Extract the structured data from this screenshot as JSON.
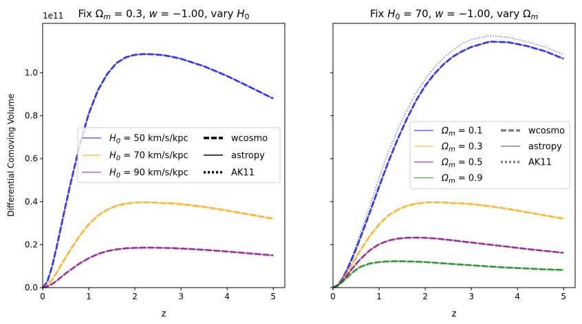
{
  "chart_data": [
    {
      "type": "line",
      "title": "Fix Ωm = 0.3, w = −1.00, vary H0",
      "title_parts": {
        "a": "Fix Ω",
        "sub1": "m",
        "b": " = 0.3, ",
        "w": "w",
        "c": " = −1.00, vary ",
        "h": "H",
        "sub2": "0"
      },
      "xlabel": "z",
      "ylabel": "Differential Comoving Volume",
      "offset_text": "1e11",
      "xlim": [
        0,
        5.25
      ],
      "ylim": [
        0,
        1.23
      ],
      "xticks": [
        0,
        1,
        2,
        3,
        4,
        5
      ],
      "yticks": [
        0.0,
        0.2,
        0.4,
        0.6,
        0.8,
        1.0
      ],
      "ytick_labels": [
        "0.0",
        "0.2",
        "0.4",
        "0.6",
        "0.8",
        "1.0"
      ],
      "x": [
        0,
        0.1,
        0.2,
        0.3,
        0.4,
        0.5,
        0.6,
        0.8,
        1.0,
        1.2,
        1.4,
        1.6,
        1.8,
        2.0,
        2.2,
        2.4,
        2.6,
        2.8,
        3.0,
        3.5,
        4.0,
        4.5,
        5.0
      ],
      "series": [
        {
          "name": "H0 = 50 km/s/kpc",
          "color": "#0000ff",
          "values": [
            0,
            0.027,
            0.095,
            0.185,
            0.285,
            0.385,
            0.48,
            0.66,
            0.81,
            0.92,
            0.995,
            1.045,
            1.072,
            1.084,
            1.087,
            1.086,
            1.082,
            1.075,
            1.065,
            1.03,
            0.985,
            0.933,
            0.88
          ]
        },
        {
          "name": "H0 = 70 km/s/kpc",
          "color": "#ffa500",
          "values": [
            0,
            0.01,
            0.035,
            0.068,
            0.105,
            0.141,
            0.176,
            0.241,
            0.295,
            0.336,
            0.363,
            0.381,
            0.391,
            0.396,
            0.397,
            0.396,
            0.394,
            0.392,
            0.389,
            0.376,
            0.359,
            0.34,
            0.321
          ]
        },
        {
          "name": "H0 = 90 km/s/kpc",
          "color": "#800080",
          "values": [
            0,
            0.005,
            0.016,
            0.031,
            0.049,
            0.066,
            0.082,
            0.112,
            0.137,
            0.157,
            0.17,
            0.178,
            0.183,
            0.185,
            0.186,
            0.186,
            0.185,
            0.184,
            0.182,
            0.176,
            0.168,
            0.159,
            0.15
          ]
        }
      ],
      "legend": {
        "placement": "center-right",
        "entries": [
          {
            "pre": "H",
            "sub": "0",
            "post": " = 50 km/s/kpc",
            "color": "#0000ff"
          },
          {
            "pre": "H",
            "sub": "0",
            "post": " = 70 km/s/kpc",
            "color": "#ffa500"
          },
          {
            "pre": "H",
            "sub": "0",
            "post": " = 90 km/s/kpc",
            "color": "#800080"
          }
        ],
        "styles": [
          "wcosmo",
          "astropy",
          "AK11"
        ],
        "style_color": "#000000"
      }
    },
    {
      "type": "line",
      "title": "Fix H0 = 70, w = −1.00, vary Ωm",
      "title_parts": {
        "a": "Fix ",
        "h": "H",
        "sub1": "0",
        "b": " = 70, ",
        "w": "w",
        "c": " = −1.00, vary Ω",
        "sub2": "m"
      },
      "xlabel": "z",
      "xlim": [
        0,
        5.25
      ],
      "ylim": [
        0,
        1.23
      ],
      "xticks": [
        0,
        1,
        2,
        3,
        4,
        5
      ],
      "x": [
        0,
        0.1,
        0.2,
        0.3,
        0.4,
        0.5,
        0.6,
        0.8,
        1.0,
        1.2,
        1.4,
        1.6,
        1.8,
        2.0,
        2.2,
        2.4,
        2.6,
        2.8,
        3.0,
        3.4,
        3.8,
        4.2,
        4.6,
        5.0
      ],
      "series": [
        {
          "name": "Ωm = 0.1",
          "color": "#0000ff",
          "values": [
            0,
            0.011,
            0.04,
            0.08,
            0.128,
            0.18,
            0.235,
            0.35,
            0.47,
            0.585,
            0.69,
            0.785,
            0.87,
            0.94,
            0.995,
            1.04,
            1.075,
            1.1,
            1.12,
            1.145,
            1.142,
            1.125,
            1.1,
            1.065
          ]
        },
        {
          "name": "Ωm = 0.3",
          "color": "#ffa500",
          "values": [
            0,
            0.01,
            0.035,
            0.068,
            0.105,
            0.141,
            0.176,
            0.241,
            0.295,
            0.336,
            0.363,
            0.381,
            0.391,
            0.396,
            0.397,
            0.396,
            0.394,
            0.392,
            0.389,
            0.379,
            0.366,
            0.351,
            0.336,
            0.321
          ]
        },
        {
          "name": "Ωm = 0.5",
          "color": "#800080",
          "values": [
            0,
            0.009,
            0.03,
            0.056,
            0.084,
            0.11,
            0.134,
            0.174,
            0.202,
            0.219,
            0.228,
            0.232,
            0.233,
            0.232,
            0.229,
            0.225,
            0.22,
            0.215,
            0.21,
            0.2,
            0.19,
            0.18,
            0.171,
            0.162
          ]
        },
        {
          "name": "Ωm = 0.9",
          "color": "#008000",
          "values": [
            0,
            0.008,
            0.026,
            0.046,
            0.066,
            0.083,
            0.097,
            0.112,
            0.119,
            0.122,
            0.123,
            0.122,
            0.121,
            0.119,
            0.116,
            0.113,
            0.11,
            0.107,
            0.104,
            0.098,
            0.093,
            0.089,
            0.085,
            0.082
          ]
        }
      ],
      "ak11_blue": [
        0,
        0.012,
        0.043,
        0.086,
        0.138,
        0.195,
        0.255,
        0.38,
        0.51,
        0.63,
        0.735,
        0.825,
        0.905,
        0.97,
        1.025,
        1.07,
        1.105,
        1.135,
        1.155,
        1.172,
        1.165,
        1.145,
        1.12,
        1.085
      ],
      "legend": {
        "placement": "center-right",
        "entries": [
          {
            "pre": "Ω",
            "sub": "m",
            "post": " = 0.1",
            "color": "#0000ff"
          },
          {
            "pre": "Ω",
            "sub": "m",
            "post": " = 0.3",
            "color": "#ffa500"
          },
          {
            "pre": "Ω",
            "sub": "m",
            "post": " = 0.5",
            "color": "#800080"
          },
          {
            "pre": "Ω",
            "sub": "m",
            "post": " = 0.9",
            "color": "#008000"
          }
        ],
        "styles": [
          "wcosmo",
          "astropy",
          "AK11"
        ],
        "style_color": "#808080"
      }
    }
  ]
}
